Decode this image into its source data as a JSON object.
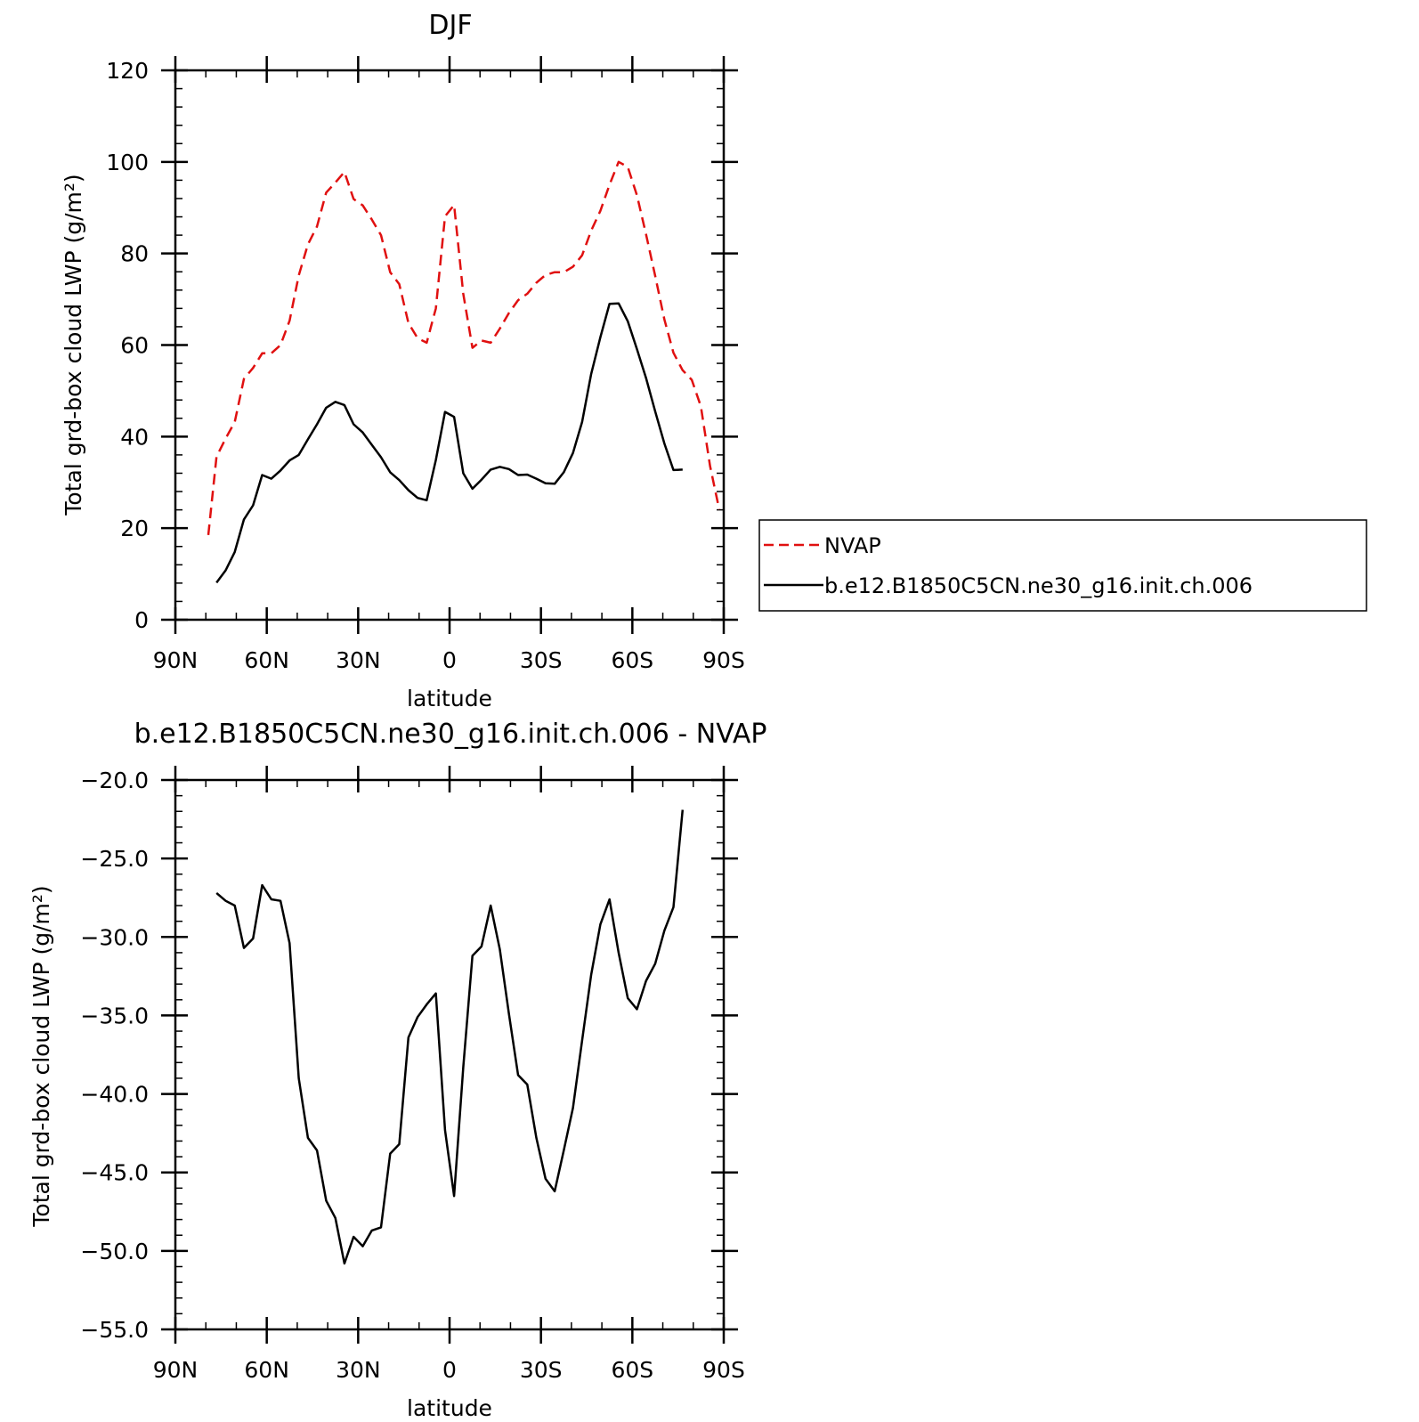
{
  "chart_data": [
    {
      "type": "line",
      "title": "DJF",
      "xlabel": "latitude",
      "ylabel": "Total grd-box cloud LWP (g/m²)",
      "xlim": [
        -90,
        90
      ],
      "ylim": [
        0,
        120
      ],
      "xticks": [
        -90,
        -60,
        -30,
        0,
        30,
        60,
        90
      ],
      "xtick_labels": [
        "90N",
        "60N",
        "30N",
        "0",
        "30S",
        "60S",
        "90S"
      ],
      "yticks": [
        0,
        20,
        40,
        60,
        80,
        100,
        120
      ],
      "ytick_labels": [
        "0",
        "20",
        "40",
        "60",
        "80",
        "100",
        "120"
      ],
      "legend_position": "right",
      "series": [
        {
          "name": "NVAP",
          "color": "#e01010",
          "style": "dashed",
          "points": [
            [
              -79.2,
              18.5
            ],
            [
              -76.5,
              35.6
            ],
            [
              -73.5,
              39.6
            ],
            [
              -70.5,
              43.2
            ],
            [
              -67.5,
              52.6
            ],
            [
              -64.5,
              55
            ],
            [
              -61.5,
              58.2
            ],
            [
              -58.5,
              58.2
            ],
            [
              -55.5,
              60
            ],
            [
              -52.5,
              65.3
            ],
            [
              -49.5,
              75.2
            ],
            [
              -46.5,
              82
            ],
            [
              -43.5,
              85.9
            ],
            [
              -40.5,
              93.3
            ],
            [
              -37.5,
              95.5
            ],
            [
              -37.5,
              95.5
            ],
            [
              -34.5,
              97.8
            ],
            [
              -31.5,
              91.9
            ],
            [
              -28.5,
              90.5
            ],
            [
              -25.5,
              87.4
            ],
            [
              -22.5,
              84
            ],
            [
              -19.5,
              75.9
            ],
            [
              -16.5,
              73.3
            ],
            [
              -13.5,
              64.8
            ],
            [
              -10.5,
              61.5
            ],
            [
              -7.5,
              60.5
            ],
            [
              -4.5,
              68
            ],
            [
              -1.5,
              88.1
            ],
            [
              1.5,
              90.6
            ],
            [
              4.5,
              71.2
            ],
            [
              7.5,
              59.4
            ],
            [
              10.5,
              61
            ],
            [
              13.5,
              60.5
            ],
            [
              16.5,
              63.6
            ],
            [
              19.5,
              67
            ],
            [
              22.5,
              69.8
            ],
            [
              25.5,
              71.2
            ],
            [
              28.5,
              73.6
            ],
            [
              31.5,
              75.3
            ],
            [
              34.5,
              75.9
            ],
            [
              37.5,
              75.9
            ],
            [
              40.5,
              77.1
            ],
            [
              43.5,
              79.6
            ],
            [
              46.5,
              85
            ],
            [
              49.5,
              89.3
            ],
            [
              52.5,
              95
            ],
            [
              55.5,
              100
            ],
            [
              58.5,
              98.9
            ],
            [
              61.5,
              92.7
            ],
            [
              64.5,
              84.2
            ],
            [
              67.5,
              75.1
            ],
            [
              70.5,
              65.6
            ],
            [
              73.5,
              58.3
            ],
            [
              76.5,
              54.5
            ],
            [
              79.5,
              52.4
            ],
            [
              82.5,
              46.6
            ],
            [
              85.5,
              33.6
            ],
            [
              88.5,
              24.1
            ]
          ]
        },
        {
          "name": "b.e12.B1850C5CN.ne30_g16.init.ch.006",
          "color": "#000000",
          "style": "solid",
          "points": [
            [
              -76.5,
              8.1
            ],
            [
              -73.5,
              10.8
            ],
            [
              -70.5,
              14.8
            ],
            [
              -67.5,
              21.9
            ],
            [
              -64.5,
              25
            ],
            [
              -61.5,
              31.6
            ],
            [
              -58.5,
              30.8
            ],
            [
              -55.5,
              32.6
            ],
            [
              -52.5,
              34.8
            ],
            [
              -49.5,
              36
            ],
            [
              -46.5,
              39.4
            ],
            [
              -43.5,
              42.7
            ],
            [
              -40.5,
              46.3
            ],
            [
              -37.5,
              47.6
            ],
            [
              -34.5,
              46.9
            ],
            [
              -31.5,
              42.7
            ],
            [
              -28.5,
              40.9
            ],
            [
              -25.5,
              38.2
            ],
            [
              -22.5,
              35.5
            ],
            [
              -19.5,
              32.2
            ],
            [
              -16.5,
              30.5
            ],
            [
              -13.5,
              28.3
            ],
            [
              -10.5,
              26.6
            ],
            [
              -7.5,
              26.1
            ],
            [
              -4.5,
              34.9
            ],
            [
              -1.5,
              45.4
            ],
            [
              1.5,
              44.3
            ],
            [
              4.5,
              32
            ],
            [
              7.5,
              28.6
            ],
            [
              10.5,
              30.6
            ],
            [
              13.5,
              32.8
            ],
            [
              16.5,
              33.4
            ],
            [
              19.5,
              32.9
            ],
            [
              22.5,
              31.6
            ],
            [
              25.5,
              31.7
            ],
            [
              28.5,
              30.8
            ],
            [
              31.5,
              29.8
            ],
            [
              34.5,
              29.7
            ],
            [
              37.5,
              32.2
            ],
            [
              40.5,
              36.4
            ],
            [
              43.5,
              43.2
            ],
            [
              46.5,
              53.7
            ],
            [
              49.5,
              61.7
            ],
            [
              52.5,
              69
            ],
            [
              55.5,
              69.1
            ],
            [
              58.5,
              65.2
            ],
            [
              61.5,
              59.1
            ],
            [
              64.5,
              52.8
            ],
            [
              67.5,
              45.5
            ],
            [
              70.5,
              38.5
            ],
            [
              73.5,
              32.7
            ],
            [
              76.5,
              32.8
            ]
          ]
        }
      ]
    },
    {
      "type": "line",
      "title": "b.e12.B1850C5CN.ne30_g16.init.ch.006 - NVAP",
      "xlabel": "latitude",
      "ylabel": "Total grd-box cloud LWP (g/m²)",
      "xlim": [
        -90,
        90
      ],
      "ylim": [
        -55,
        -20
      ],
      "xticks": [
        -90,
        -60,
        -30,
        0,
        30,
        60,
        90
      ],
      "xtick_labels": [
        "90N",
        "60N",
        "30N",
        "0",
        "30S",
        "60S",
        "90S"
      ],
      "yticks": [
        -55,
        -50,
        -45,
        -40,
        -35,
        -30,
        -25,
        -20
      ],
      "ytick_labels": [
        "−55.0",
        "−50.0",
        "−45.0",
        "−40.0",
        "−35.0",
        "−30.0",
        "−25.0",
        "−20.0"
      ],
      "series": [
        {
          "color": "#000000",
          "style": "solid",
          "points": [
            [
              -76.5,
              -27.2
            ],
            [
              -73.5,
              -27.7
            ],
            [
              -70.5,
              -28
            ],
            [
              -67.5,
              -30.7
            ],
            [
              -64.5,
              -30.1
            ],
            [
              -61.5,
              -26.7
            ],
            [
              -58.5,
              -27.6
            ],
            [
              -55.5,
              -27.7
            ],
            [
              -52.5,
              -30.4
            ],
            [
              -49.5,
              -39
            ],
            [
              -46.5,
              -42.8
            ],
            [
              -43.5,
              -43.6
            ],
            [
              -40.5,
              -46.8
            ],
            [
              -37.5,
              -47.9
            ],
            [
              -34.5,
              -50.8
            ],
            [
              -31.5,
              -49.1
            ],
            [
              -28.5,
              -49.7
            ],
            [
              -25.5,
              -48.7
            ],
            [
              -22.5,
              -48.5
            ],
            [
              -19.5,
              -43.8
            ],
            [
              -16.5,
              -43.2
            ],
            [
              -13.5,
              -36.4
            ],
            [
              -10.5,
              -35.1
            ],
            [
              -7.5,
              -34.3
            ],
            [
              -4.5,
              -33.6
            ],
            [
              -1.5,
              -42.3
            ],
            [
              1.5,
              -46.5
            ],
            [
              4.5,
              -38.3
            ],
            [
              7.5,
              -31.2
            ],
            [
              10.5,
              -30.6
            ],
            [
              13.5,
              -28
            ],
            [
              16.5,
              -30.8
            ],
            [
              19.5,
              -34.9
            ],
            [
              22.5,
              -38.8
            ],
            [
              25.5,
              -39.4
            ],
            [
              28.5,
              -42.8
            ],
            [
              31.5,
              -45.4
            ],
            [
              34.5,
              -46.2
            ],
            [
              37.5,
              -43.6
            ],
            [
              40.5,
              -40.9
            ],
            [
              43.5,
              -36.6
            ],
            [
              46.5,
              -32.4
            ],
            [
              49.5,
              -29.2
            ],
            [
              52.5,
              -27.6
            ],
            [
              55.5,
              -31
            ],
            [
              58.5,
              -33.9
            ],
            [
              61.5,
              -34.6
            ],
            [
              64.5,
              -32.8
            ],
            [
              67.5,
              -31.7
            ],
            [
              70.5,
              -29.6
            ],
            [
              73.5,
              -28.1
            ],
            [
              76.5,
              -21.9
            ]
          ]
        }
      ]
    }
  ]
}
